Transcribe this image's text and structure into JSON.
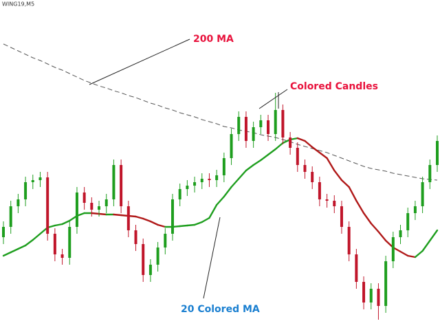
{
  "chart_data": {
    "type": "candlestick",
    "title": "WING19,M5",
    "ylim": [
      0,
      480
    ],
    "up_color": "#1e9e1e",
    "down_color": "#c0152a",
    "open": [
      135,
      150,
      180,
      190,
      215,
      218,
      222,
      140,
      110,
      105,
      150,
      200,
      185,
      175,
      180,
      190,
      240,
      180,
      145,
      125,
      80,
      95,
      120,
      140,
      190,
      205,
      210,
      215,
      220,
      218,
      225,
      250,
      285,
      310,
      275,
      295,
      305,
      285,
      320,
      280,
      265,
      240,
      230,
      215,
      190,
      188,
      180,
      150,
      110,
      70,
      40,
      60,
      35,
      100,
      135,
      145,
      170,
      180,
      215,
      240
    ],
    "high": [
      158,
      188,
      198,
      223,
      226,
      230,
      230,
      148,
      118,
      158,
      208,
      208,
      193,
      188,
      198,
      248,
      248,
      188,
      153,
      133,
      103,
      128,
      148,
      198,
      213,
      218,
      223,
      228,
      228,
      233,
      258,
      293,
      318,
      318,
      303,
      313,
      313,
      345,
      328,
      288,
      273,
      248,
      238,
      223,
      198,
      196,
      188,
      158,
      118,
      78,
      68,
      68,
      108,
      143,
      153,
      178,
      188,
      223,
      248,
      283
    ],
    "low": [
      125,
      140,
      170,
      180,
      205,
      208,
      130,
      100,
      95,
      95,
      140,
      175,
      165,
      165,
      170,
      180,
      170,
      135,
      115,
      70,
      70,
      85,
      110,
      130,
      180,
      195,
      200,
      205,
      208,
      208,
      215,
      240,
      275,
      265,
      265,
      285,
      275,
      275,
      270,
      255,
      230,
      220,
      205,
      180,
      178,
      170,
      140,
      100,
      60,
      30,
      30,
      15,
      25,
      90,
      125,
      135,
      160,
      170,
      205,
      230
    ],
    "close": [
      150,
      180,
      190,
      215,
      218,
      222,
      140,
      110,
      105,
      150,
      200,
      185,
      175,
      180,
      190,
      240,
      180,
      145,
      125,
      80,
      95,
      120,
      140,
      190,
      205,
      210,
      215,
      220,
      218,
      225,
      250,
      285,
      310,
      275,
      295,
      305,
      285,
      320,
      280,
      265,
      240,
      230,
      215,
      190,
      188,
      180,
      150,
      110,
      70,
      40,
      60,
      35,
      100,
      135,
      145,
      170,
      180,
      215,
      240,
      275
    ],
    "series": [
      {
        "name": "200 MA",
        "color": "#555555",
        "style": "dashed",
        "label_color": "#e8123c",
        "values": [
          416,
          411,
          406,
          401,
          396,
          392,
          387,
          382,
          378,
          373,
          368,
          363,
          359,
          355,
          352,
          348,
          345,
          341,
          338,
          334,
          330,
          327,
          323,
          320,
          316,
          313,
          310,
          306,
          303,
          300,
          296,
          294,
          291,
          289,
          287,
          284,
          282,
          280,
          277,
          274,
          270,
          267,
          264,
          261,
          258,
          254,
          250,
          246,
          242,
          238,
          235,
          233,
          231,
          228,
          226,
          224,
          222,
          220,
          219,
          218
        ]
      },
      {
        "name": "20 Colored MA",
        "color": "#1e9e1e",
        "falling_color": "#b01818",
        "style": "colored",
        "label_color": "#1a7fd0",
        "values": [
          108,
          113,
          118,
          123,
          131,
          140,
          149,
          152,
          154,
          159,
          166,
          170,
          170,
          169,
          168,
          168,
          167,
          166,
          165,
          162,
          158,
          153,
          150,
          150,
          151,
          152,
          153,
          157,
          163,
          182,
          194,
          208,
          220,
          232,
          240,
          247,
          255,
          263,
          272,
          277,
          279,
          275,
          266,
          258,
          250,
          232,
          218,
          208,
          188,
          170,
          155,
          143,
          130,
          120,
          114,
          108,
          106,
          115,
          130,
          145
        ]
      }
    ],
    "annotation": "Colored Candles",
    "annotation_color": "#e8123c"
  }
}
